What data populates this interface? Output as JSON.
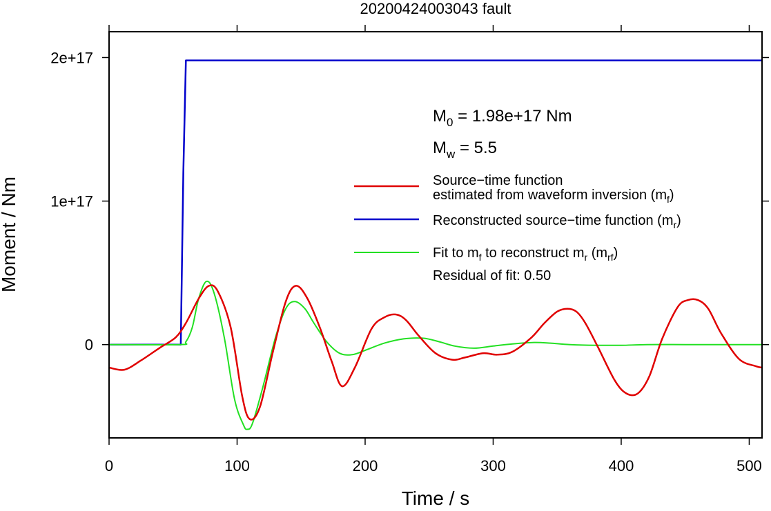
{
  "chart_data": {
    "type": "line",
    "title": "20200424003043 fault",
    "xlabel": "Time / s",
    "ylabel": "Moment / Nm",
    "xlim": [
      0,
      510
    ],
    "ylim": [
      -6.5e+16,
      2.18e+17
    ],
    "x_ticks": [
      0,
      100,
      200,
      300,
      400,
      500
    ],
    "x_tick_labels": [
      "0",
      "100",
      "200",
      "300",
      "400",
      "500"
    ],
    "y_ticks": [
      0,
      1e+17,
      2e+17
    ],
    "y_tick_labels": [
      "0",
      "1e+17",
      "2e+17"
    ],
    "grid": false,
    "annotations": {
      "m0": {
        "base": "M",
        "sub": "0",
        "rest": " = 1.98e+17 Nm"
      },
      "mw": {
        "base": "M",
        "sub": "w",
        "rest": " = 5.5"
      },
      "residual": "Residual of fit: 0.50"
    },
    "legend": {
      "placement": "right",
      "entries": [
        {
          "line1": "Source−time function",
          "line2_pre": "estimated from waveform inversion (m",
          "line2_sub": "f",
          "line2_post": ")",
          "color": "#e00000"
        },
        {
          "pre": "Reconstructed source−time function (m",
          "sub": "r",
          "post": ")",
          "color": "#0000cc"
        },
        {
          "pre": "Fit to m",
          "sub1": "f",
          "mid": " to reconstruct m",
          "sub2": "r",
          "pre2": " (m",
          "sub3": "rf",
          "post": ")",
          "color": "#22e022"
        }
      ]
    },
    "series": [
      {
        "key": "mf",
        "color": "#e00000",
        "x": [
          0,
          12,
          25,
          40,
          52,
          60,
          70,
          78,
          85,
          95,
          104,
          110,
          118,
          128,
          138,
          146,
          155,
          165,
          174,
          182,
          192,
          205,
          215,
          224,
          232,
          242,
          255,
          268,
          278,
          292,
          303,
          315,
          330,
          340,
          350,
          358,
          365,
          372,
          382,
          395,
          404,
          413,
          422,
          432,
          444,
          452,
          460,
          468,
          478,
          492,
          505,
          510
        ],
        "values": [
          -1.6e+16,
          -1.75e+16,
          -1.1e+16,
          -2000000000000000.0,
          5000000000000000.0,
          1.5e+16,
          3.2e+16,
          4.1e+16,
          3.7e+16,
          1.2e+16,
          -3.6e+16,
          -5.2e+16,
          -4.3e+16,
          -5000000000000000.0,
          3e+16,
          4.1e+16,
          3.2e+16,
          1.1e+16,
          -1.2e+16,
          -2.9e+16,
          -1.6e+16,
          1.1e+16,
          1.9e+16,
          2.1e+16,
          1.7e+16,
          6000000000000000.0,
          -6000000000000000.0,
          -1.05e+16,
          -9000000000000000.0,
          -6000000000000000.0,
          -7000000000000000.0,
          -5000000000000000.0,
          5000000000000000.0,
          1.5e+16,
          2.3e+16,
          2.5e+16,
          2.3e+16,
          1.5e+16,
          -2000000000000000.0,
          -2.5e+16,
          -3.4e+16,
          -3.4e+16,
          -2.2e+16,
          4000000000000000.0,
          2.6e+16,
          3.1e+16,
          3.1e+16,
          2.5e+16,
          8000000000000000.0,
          -1e+16,
          -1.5e+16,
          -1.6e+16
        ]
      },
      {
        "key": "mr",
        "color": "#0000cc",
        "x": [
          0,
          56,
          58,
          60,
          510
        ],
        "values": [
          0,
          0,
          1.2e+17,
          1.98e+17,
          1.98e+17
        ]
      },
      {
        "key": "mrf",
        "color": "#22e022",
        "x": [
          0,
          55,
          60,
          65,
          70,
          76,
          82,
          90,
          98,
          105,
          108,
          112,
          120,
          130,
          138,
          145,
          153,
          160,
          170,
          180,
          190,
          200,
          215,
          230,
          245,
          258,
          270,
          285,
          300,
          315,
          332,
          345,
          360,
          380,
          400,
          420,
          450,
          480,
          510
        ],
        "values": [
          0,
          0,
          2000000000000000.0,
          1.2e+16,
          3.2e+16,
          4.4e+16,
          3.6e+16,
          5000000000000000.0,
          -3.8e+16,
          -5.6e+16,
          -5.9e+16,
          -5.5e+16,
          -3e+16,
          5000000000000000.0,
          2.5e+16,
          3e+16,
          2.5e+16,
          1.5e+16,
          2000000000000000.0,
          -6000000000000000.0,
          -7000000000000000.0,
          -4000000000000000.0,
          1000000000000000.0,
          4000000000000000.0,
          4500000000000000.0,
          2000000000000000.0,
          -1000000000000000.0,
          -2500000000000000.0,
          -1000000000000000.0,
          500000000000000.0,
          1500000000000000.0,
          1000000000000000.0,
          0,
          -500000000000000.0,
          -500000000000000.0,
          0,
          0,
          0,
          0
        ]
      }
    ]
  }
}
